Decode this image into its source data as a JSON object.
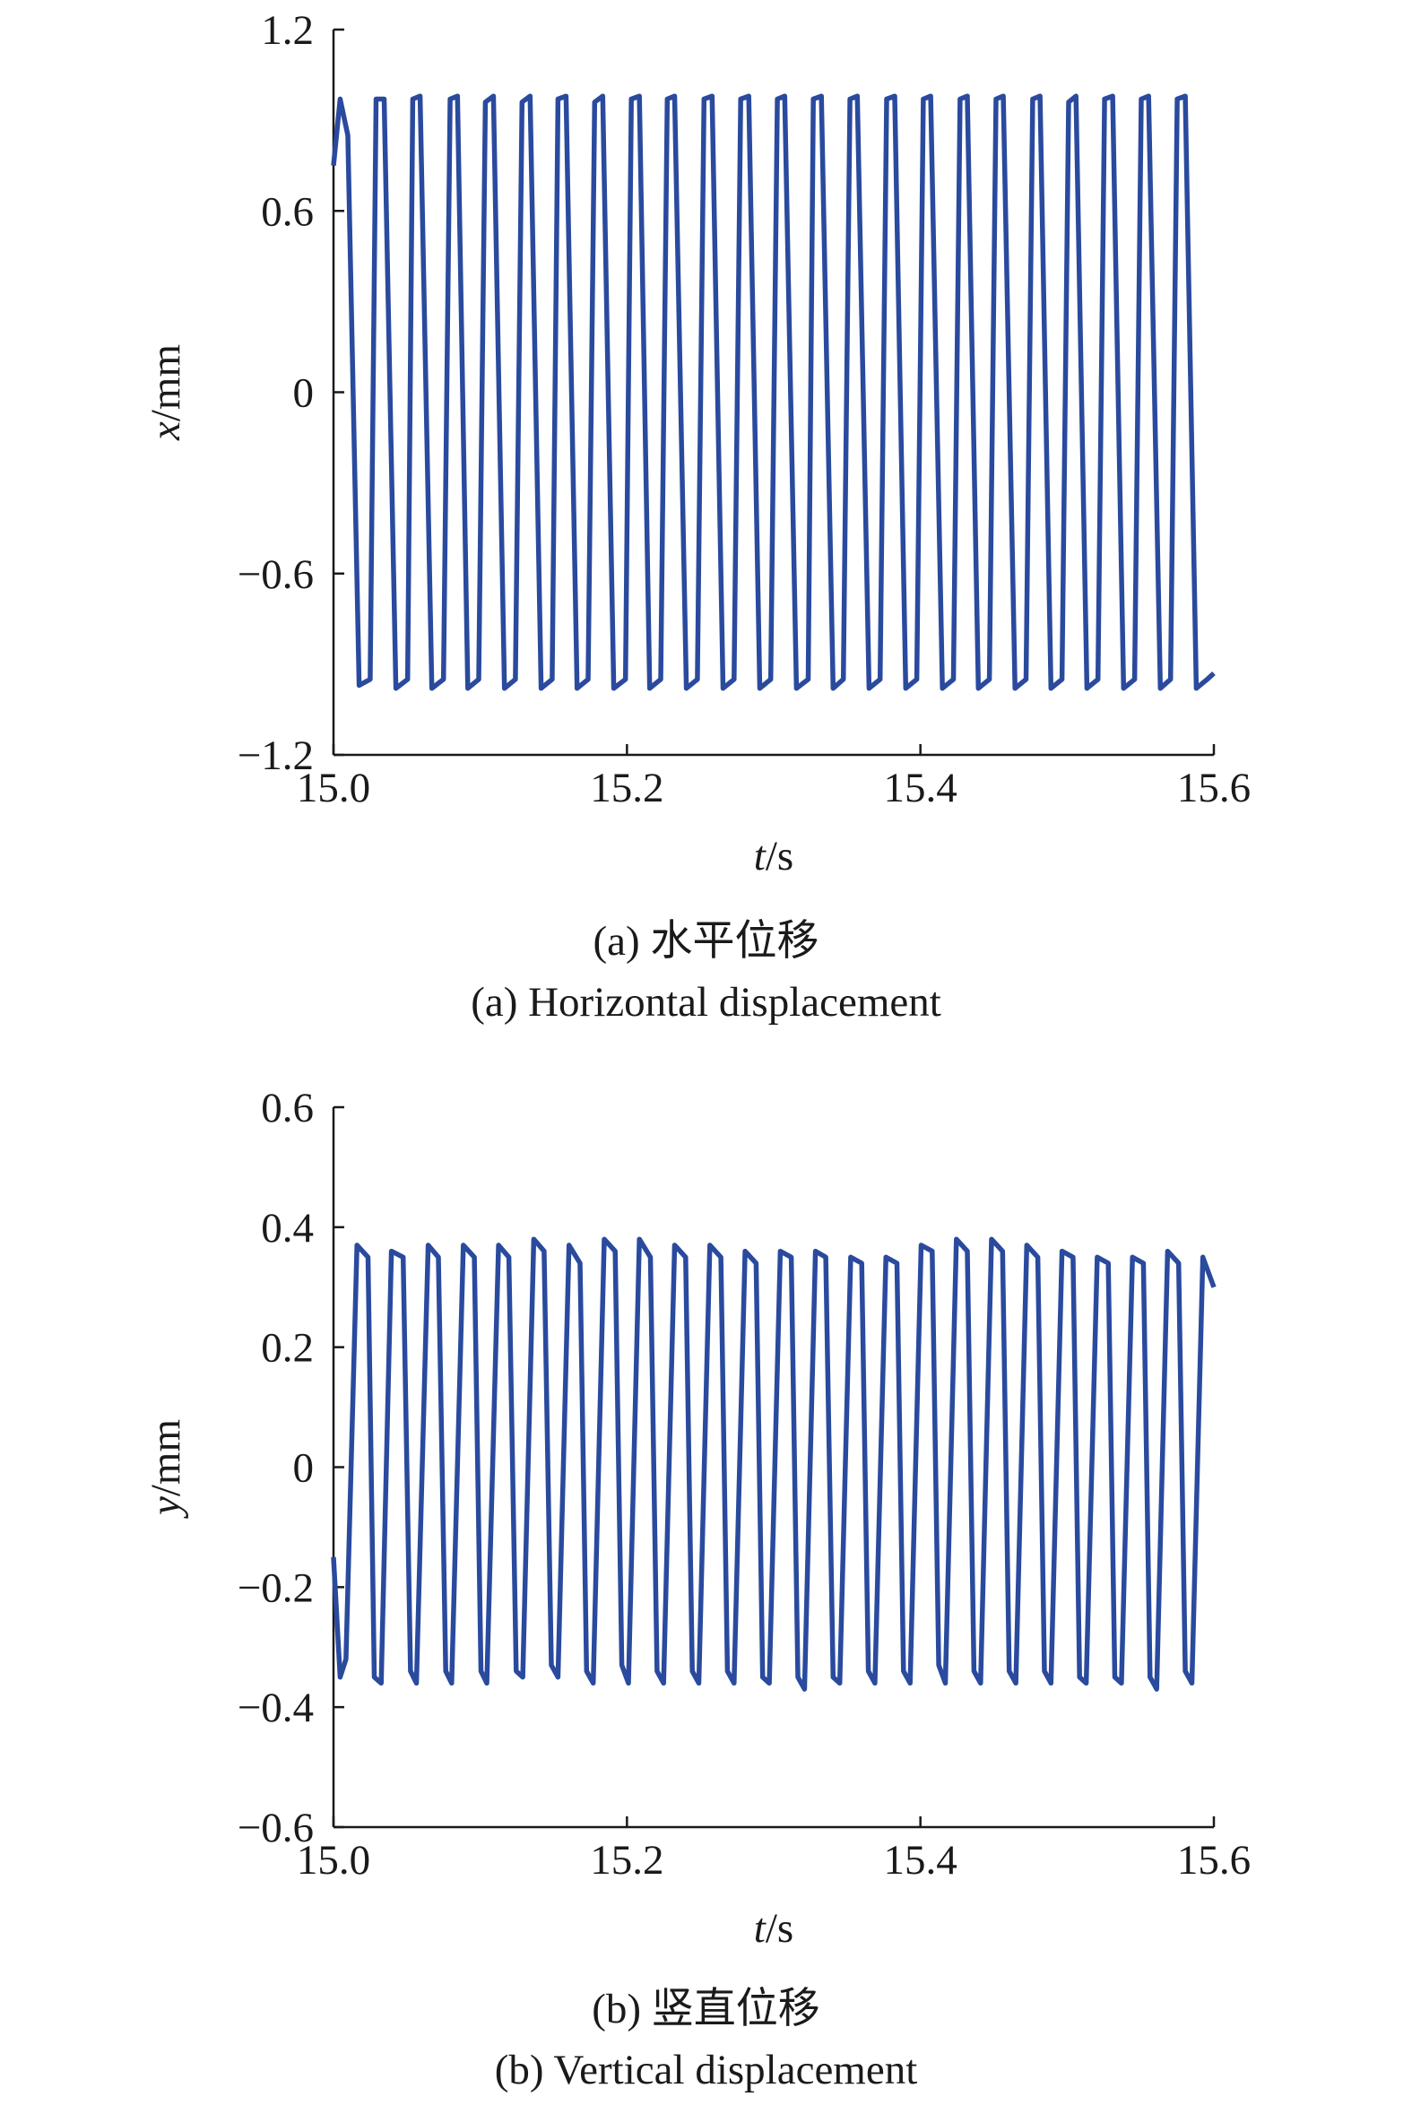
{
  "line_color": "#2a4a9e",
  "chart_data": [
    {
      "type": "line",
      "caption_cn": "(a) 水平位移",
      "caption_en": "(a) Horizontal displacement",
      "xlabel_var": "t",
      "xlabel_unit": "/s",
      "ylabel_var": "x",
      "ylabel_unit": "/mm",
      "xlim": [
        15.0,
        15.6
      ],
      "ylim": [
        -1.2,
        1.2
      ],
      "xticks": [
        15.0,
        15.2,
        15.4,
        15.6
      ],
      "xtick_labels": [
        "15.0",
        "15.2",
        "15.4",
        "15.6"
      ],
      "yticks": [
        1.2,
        0.6,
        0,
        -0.6,
        -1.2
      ],
      "ytick_labels": [
        "1.2",
        "0.6",
        "0",
        "−0.6",
        "−1.2"
      ],
      "grid": false,
      "series": [
        {
          "x": [
            15.0,
            15.0045,
            15.0098,
            15.0175,
            15.025,
            15.029,
            15.0345,
            15.0425,
            15.0505,
            15.054,
            15.059,
            15.067,
            15.075,
            15.0795,
            15.0845,
            15.0915,
            15.099,
            15.1035,
            15.109,
            15.1165,
            15.124,
            15.1285,
            15.134,
            15.1415,
            15.149,
            15.153,
            15.1585,
            15.166,
            15.1735,
            15.178,
            15.1835,
            15.191,
            15.199,
            15.203,
            15.2085,
            15.2155,
            15.223,
            15.2275,
            15.2325,
            15.2405,
            15.248,
            15.2525,
            15.258,
            15.2655,
            15.273,
            15.2775,
            15.283,
            15.2905,
            15.298,
            15.3025,
            15.3075,
            15.3155,
            15.3235,
            15.327,
            15.3325,
            15.3405,
            15.3475,
            15.352,
            15.357,
            15.365,
            15.3725,
            15.377,
            15.3825,
            15.39,
            15.3975,
            15.402,
            15.407,
            15.415,
            15.4225,
            15.427,
            15.432,
            15.4395,
            15.447,
            15.4515,
            15.4565,
            15.4645,
            15.472,
            15.4765,
            15.4815,
            15.489,
            15.4965,
            15.501,
            15.506,
            15.5135,
            15.521,
            15.5255,
            15.531,
            15.5385,
            15.546,
            15.5505,
            15.5555,
            15.5635,
            15.5705,
            15.575,
            15.5805,
            15.588,
            15.5955,
            15.6
          ],
          "y": [
            0.75,
            0.97,
            0.85,
            -0.97,
            -0.95,
            0.97,
            0.97,
            -0.98,
            -0.95,
            0.97,
            0.98,
            -0.98,
            -0.95,
            0.97,
            0.98,
            -0.98,
            -0.95,
            0.96,
            0.98,
            -0.98,
            -0.95,
            0.96,
            0.98,
            -0.98,
            -0.95,
            0.97,
            0.98,
            -0.98,
            -0.95,
            0.96,
            0.98,
            -0.98,
            -0.95,
            0.97,
            0.98,
            -0.98,
            -0.95,
            0.97,
            0.98,
            -0.98,
            -0.95,
            0.97,
            0.98,
            -0.98,
            -0.95,
            0.97,
            0.98,
            -0.98,
            -0.95,
            0.97,
            0.98,
            -0.98,
            -0.95,
            0.97,
            0.98,
            -0.98,
            -0.95,
            0.97,
            0.98,
            -0.98,
            -0.95,
            0.97,
            0.98,
            -0.98,
            -0.95,
            0.97,
            0.98,
            -0.98,
            -0.95,
            0.97,
            0.98,
            -0.98,
            -0.95,
            0.97,
            0.98,
            -0.98,
            -0.95,
            0.97,
            0.98,
            -0.98,
            -0.95,
            0.96,
            0.98,
            -0.98,
            -0.95,
            0.97,
            0.98,
            -0.98,
            -0.95,
            0.97,
            0.98,
            -0.98,
            -0.95,
            0.97,
            0.98,
            -0.98,
            -0.95,
            -0.93
          ]
        }
      ]
    },
    {
      "type": "line",
      "caption_cn": "(b) 竖直位移",
      "caption_en": "(b) Vertical displacement",
      "xlabel_var": "t",
      "xlabel_unit": "/s",
      "ylabel_var": "y",
      "ylabel_unit": "/mm",
      "xlim": [
        15.0,
        15.6
      ],
      "ylim": [
        -0.6,
        0.6
      ],
      "xticks": [
        15.0,
        15.2,
        15.4,
        15.6
      ],
      "xtick_labels": [
        "15.0",
        "15.2",
        "15.4",
        "15.6"
      ],
      "yticks": [
        0.6,
        0.4,
        0.2,
        0,
        -0.2,
        -0.4,
        -0.6
      ],
      "ytick_labels": [
        "0.6",
        "0.4",
        "0.2",
        "0",
        "−0.2",
        "−0.4",
        "−0.6"
      ],
      "grid": false,
      "series": [
        {
          "x": [
            15.0,
            15.0045,
            15.0085,
            15.016,
            15.0235,
            15.0278,
            15.0325,
            15.0395,
            15.0475,
            15.0525,
            15.0565,
            15.0645,
            15.0715,
            15.0765,
            15.0805,
            15.0885,
            15.096,
            15.1005,
            15.1045,
            15.1125,
            15.1195,
            15.1245,
            15.129,
            15.1365,
            15.1435,
            15.1485,
            15.153,
            15.1605,
            15.168,
            15.1725,
            15.177,
            15.1845,
            15.192,
            15.1965,
            15.201,
            15.2085,
            15.216,
            15.2205,
            15.225,
            15.2325,
            15.24,
            15.2445,
            15.249,
            15.2565,
            15.264,
            15.2685,
            15.273,
            15.2805,
            15.288,
            15.2925,
            15.297,
            15.3045,
            15.312,
            15.3165,
            15.321,
            15.3285,
            15.3355,
            15.3405,
            15.345,
            15.3525,
            15.36,
            15.3645,
            15.369,
            15.3765,
            15.384,
            15.3885,
            15.393,
            15.4005,
            15.408,
            15.4125,
            15.417,
            15.4245,
            15.432,
            15.4365,
            15.441,
            15.4485,
            15.456,
            15.4605,
            15.465,
            15.4725,
            15.48,
            15.4845,
            15.489,
            15.4965,
            15.504,
            15.5085,
            15.513,
            15.5205,
            15.528,
            15.5325,
            15.537,
            15.5445,
            15.552,
            15.5565,
            15.561,
            15.5685,
            15.576,
            15.5805,
            15.585,
            15.5925,
            15.6
          ],
          "y": [
            -0.15,
            -0.35,
            -0.32,
            0.37,
            0.35,
            -0.35,
            -0.36,
            0.36,
            0.35,
            -0.34,
            -0.36,
            0.37,
            0.35,
            -0.34,
            -0.36,
            0.37,
            0.35,
            -0.34,
            -0.36,
            0.37,
            0.35,
            -0.34,
            -0.35,
            0.38,
            0.36,
            -0.33,
            -0.35,
            0.37,
            0.34,
            -0.34,
            -0.36,
            0.38,
            0.36,
            -0.33,
            -0.36,
            0.38,
            0.35,
            -0.34,
            -0.36,
            0.37,
            0.35,
            -0.34,
            -0.36,
            0.37,
            0.35,
            -0.34,
            -0.36,
            0.36,
            0.34,
            -0.35,
            -0.36,
            0.36,
            0.35,
            -0.35,
            -0.37,
            0.36,
            0.35,
            -0.35,
            -0.36,
            0.35,
            0.34,
            -0.34,
            -0.36,
            0.35,
            0.34,
            -0.34,
            -0.36,
            0.37,
            0.36,
            -0.33,
            -0.36,
            0.38,
            0.36,
            -0.34,
            -0.36,
            0.38,
            0.36,
            -0.34,
            -0.36,
            0.37,
            0.35,
            -0.34,
            -0.36,
            0.36,
            0.35,
            -0.35,
            -0.36,
            0.35,
            0.34,
            -0.35,
            -0.36,
            0.35,
            0.34,
            -0.35,
            -0.37,
            0.36,
            0.34,
            -0.34,
            -0.36,
            0.35,
            0.3
          ]
        }
      ]
    }
  ]
}
